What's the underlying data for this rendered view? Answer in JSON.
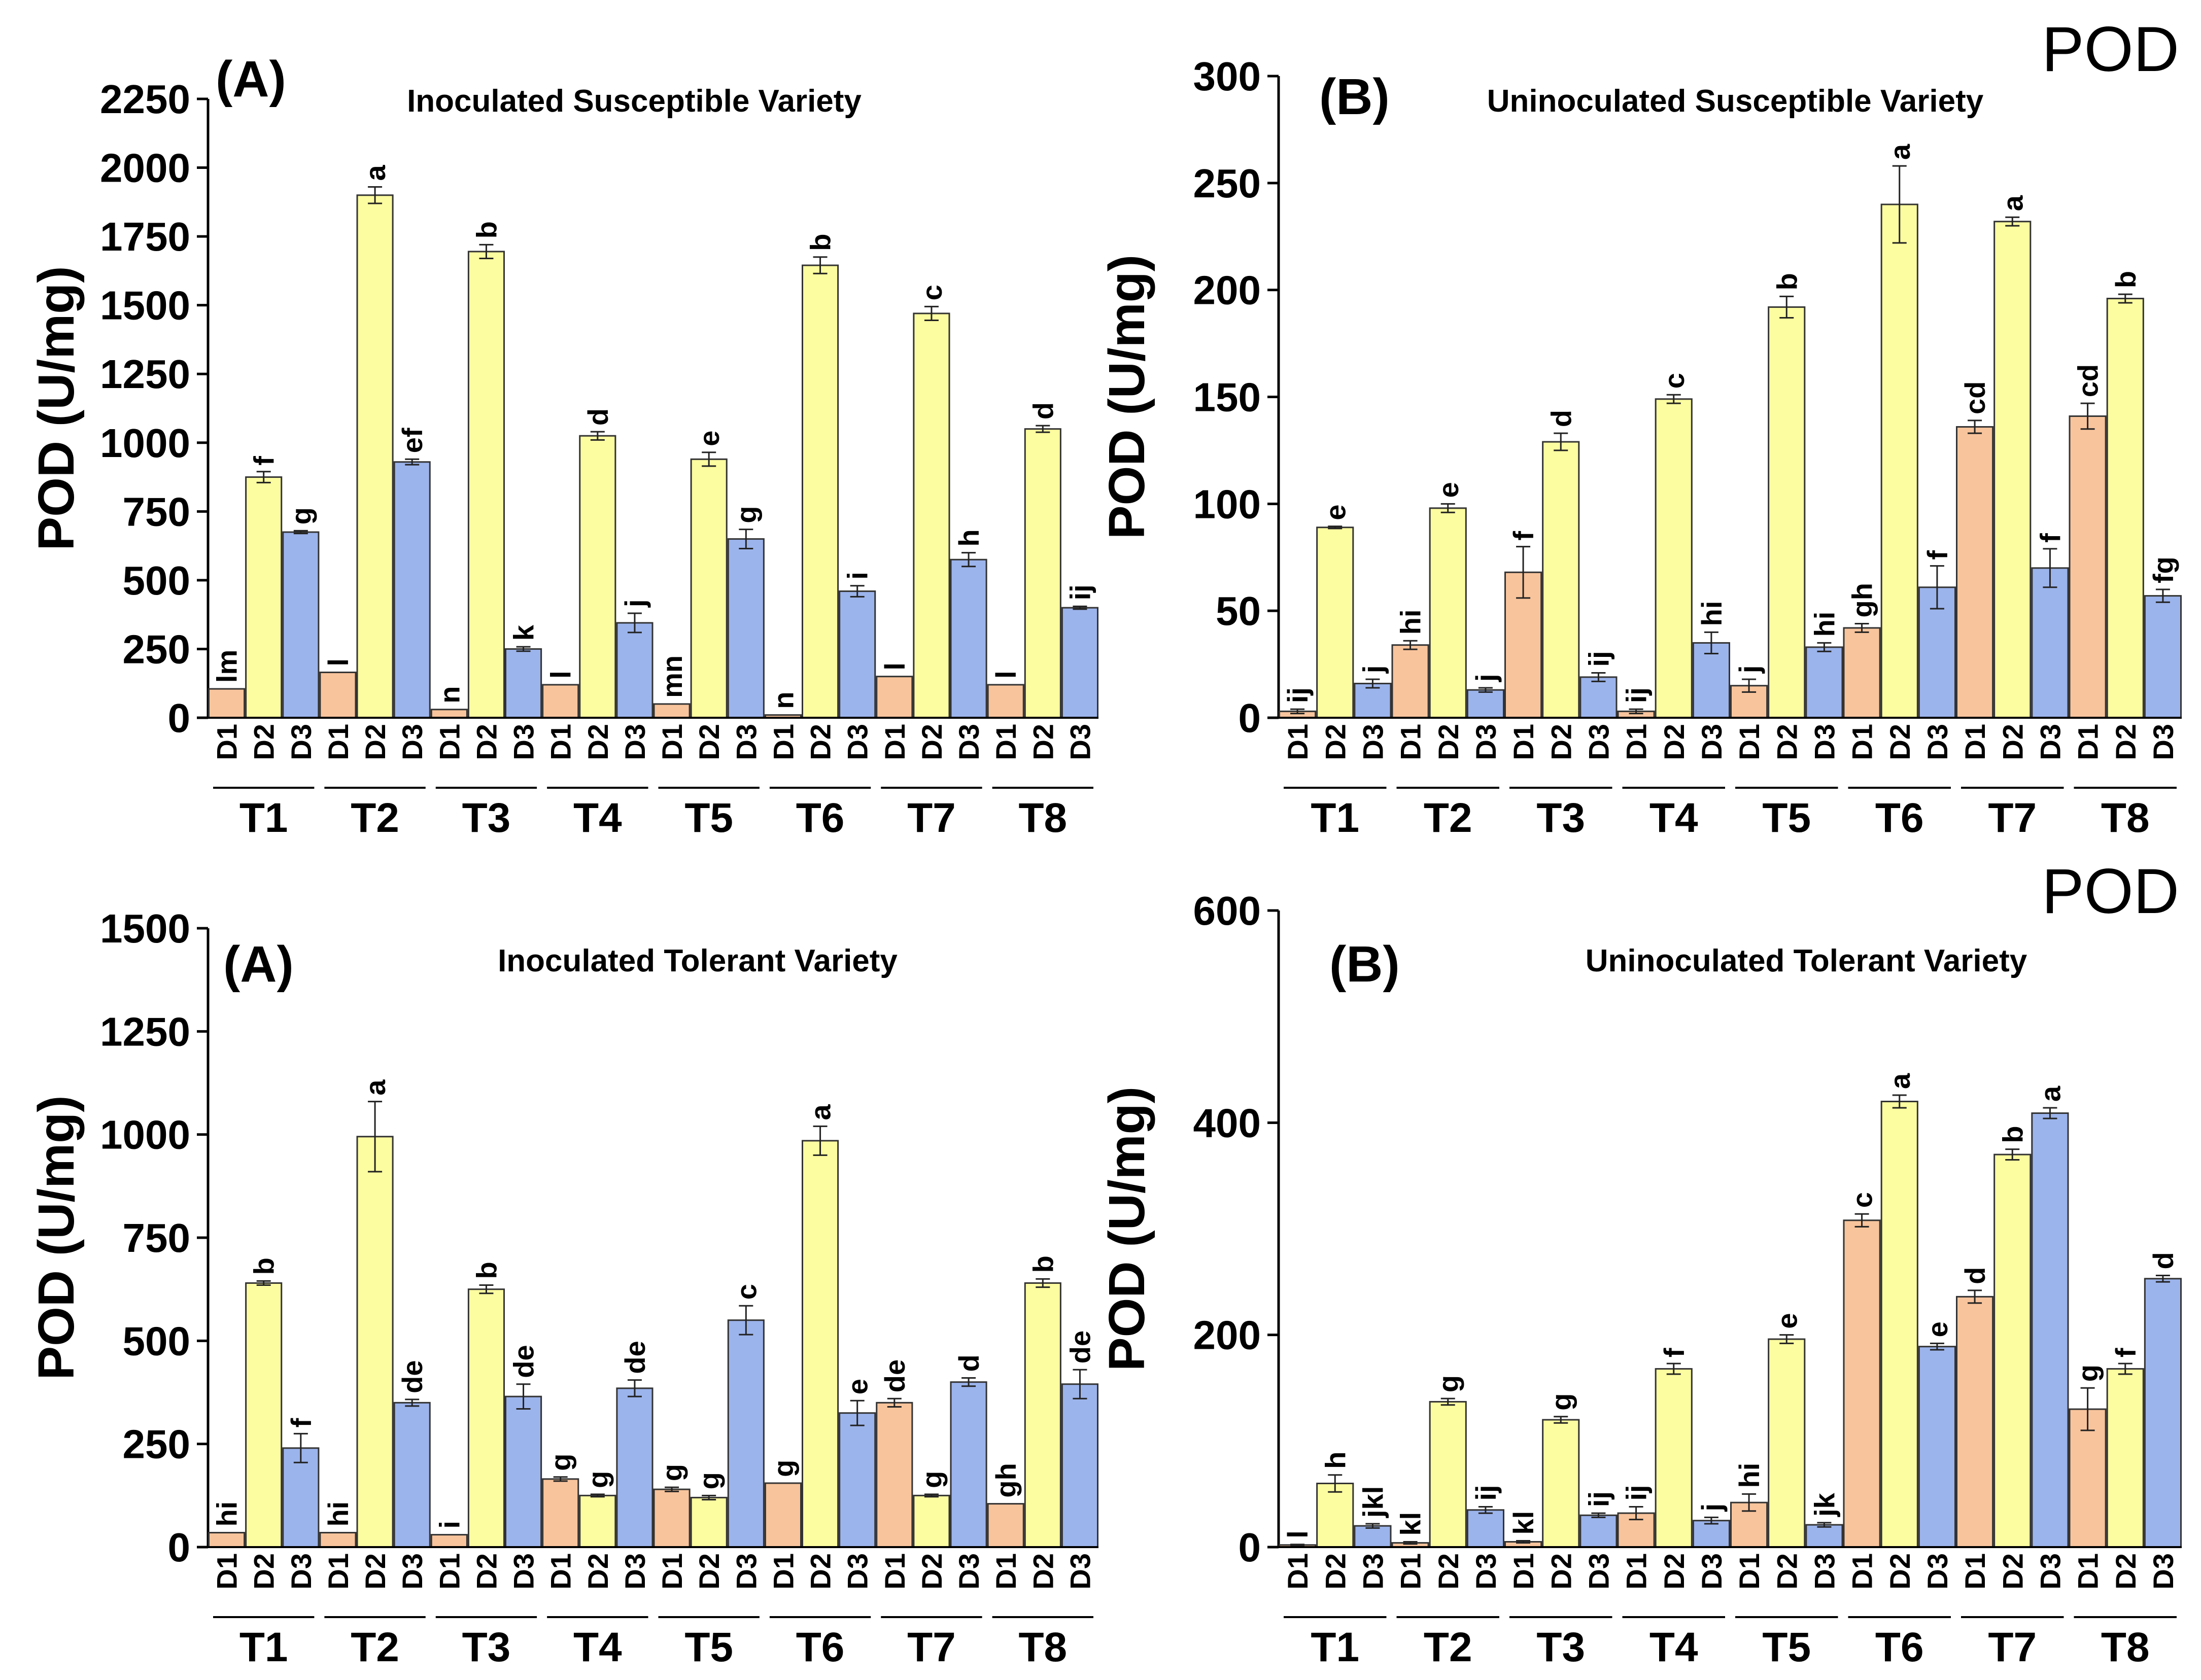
{
  "figure_labels": {
    "pod_top": "POD",
    "pod_bottom": "POD"
  },
  "colors": {
    "D1": "#f8c49c",
    "D2": "#fcfca0",
    "D3": "#9cb4ec",
    "outline": "#333333"
  },
  "chart_data": [
    {
      "type": "bar",
      "panel": "(A)",
      "title": "Inoculated Susceptible Variety",
      "ylabel": "POD (U/mg)",
      "ylim": [
        0,
        2250
      ],
      "yticks": [
        0,
        250,
        500,
        750,
        1000,
        1250,
        1500,
        1750,
        2000,
        2250
      ],
      "categories": [
        "T1",
        "T2",
        "T3",
        "T4",
        "T5",
        "T6",
        "T7",
        "T8"
      ],
      "sublabels": [
        "D1",
        "D2",
        "D3"
      ],
      "series": [
        {
          "name": "D1",
          "values": [
            105,
            165,
            30,
            120,
            50,
            10,
            150,
            120
          ],
          "errors": [
            0,
            0,
            0,
            0,
            0,
            0,
            0,
            0
          ],
          "letters": [
            "lm",
            "l",
            "n",
            "l",
            "mn",
            "n",
            "l",
            "l"
          ]
        },
        {
          "name": "D2",
          "values": [
            875,
            1900,
            1695,
            1025,
            940,
            1645,
            1470,
            1050
          ],
          "errors": [
            20,
            30,
            25,
            15,
            25,
            30,
            25,
            12
          ],
          "letters": [
            "f",
            "a",
            "b",
            "d",
            "e",
            "b",
            "c",
            "d"
          ]
        },
        {
          "name": "D3",
          "values": [
            675,
            930,
            250,
            345,
            650,
            460,
            575,
            400
          ],
          "errors": [
            5,
            10,
            8,
            35,
            35,
            20,
            25,
            5
          ],
          "letters": [
            "g",
            "ef",
            "k",
            "j",
            "g",
            "i",
            "h",
            "ij"
          ]
        }
      ]
    },
    {
      "type": "bar",
      "panel": "(B)",
      "title": "Uninoculated Susceptible Variety",
      "ylabel": "POD (U/mg)",
      "ylim": [
        0,
        300
      ],
      "yticks": [
        0,
        50,
        100,
        150,
        200,
        250,
        300
      ],
      "categories": [
        "T1",
        "T2",
        "T3",
        "T4",
        "T5",
        "T6",
        "T7",
        "T8"
      ],
      "sublabels": [
        "D1",
        "D2",
        "D3"
      ],
      "series": [
        {
          "name": "D1",
          "values": [
            3,
            34,
            68,
            3,
            15,
            42,
            136,
            141
          ],
          "errors": [
            1,
            2,
            12,
            1,
            3,
            2,
            3,
            6
          ],
          "letters": [
            "ij",
            "hi",
            "f",
            "ij",
            "j",
            "gh",
            "cd",
            "cd"
          ]
        },
        {
          "name": "D2",
          "values": [
            89,
            98,
            129,
            149,
            192,
            240,
            232,
            196
          ],
          "errors": [
            0.5,
            2,
            4,
            2,
            5,
            18,
            2,
            2
          ],
          "letters": [
            "e",
            "e",
            "d",
            "c",
            "b",
            "a",
            "a",
            "b"
          ]
        },
        {
          "name": "D3",
          "values": [
            16,
            13,
            19,
            35,
            33,
            61,
            70,
            57
          ],
          "errors": [
            2,
            1,
            2,
            5,
            2,
            10,
            9,
            3
          ],
          "letters": [
            "j",
            "j",
            "ij",
            "hi",
            "hi",
            "f",
            "f",
            "fg"
          ]
        }
      ]
    },
    {
      "type": "bar",
      "panel": "(A)",
      "title": "Inoculated Tolerant Variety",
      "ylabel": "POD (U/mg)",
      "ylim": [
        0,
        1500
      ],
      "yticks": [
        0,
        250,
        500,
        750,
        1000,
        1250,
        1500
      ],
      "categories": [
        "T1",
        "T2",
        "T3",
        "T4",
        "T5",
        "T6",
        "T7",
        "T8"
      ],
      "sublabels": [
        "D1",
        "D2",
        "D3"
      ],
      "series": [
        {
          "name": "D1",
          "values": [
            35,
            35,
            30,
            165,
            140,
            155,
            350,
            105
          ],
          "errors": [
            0,
            0,
            0,
            5,
            5,
            0,
            10,
            0
          ],
          "letters": [
            "hi",
            "hi",
            "i",
            "g",
            "g",
            "g",
            "de",
            "gh"
          ]
        },
        {
          "name": "D2",
          "values": [
            640,
            995,
            625,
            125,
            120,
            985,
            125,
            640
          ],
          "errors": [
            5,
            85,
            10,
            3,
            5,
            35,
            3,
            10
          ],
          "letters": [
            "b",
            "a",
            "b",
            "g",
            "g",
            "a",
            "g",
            "b"
          ]
        },
        {
          "name": "D3",
          "values": [
            240,
            350,
            365,
            385,
            550,
            325,
            400,
            395
          ],
          "errors": [
            35,
            8,
            30,
            20,
            35,
            30,
            10,
            35
          ],
          "letters": [
            "f",
            "de",
            "de",
            "de",
            "c",
            "e",
            "d",
            "de"
          ]
        }
      ]
    },
    {
      "type": "bar",
      "panel": "(B)",
      "title": "Uninoculated  Tolerant Variety",
      "ylabel": "POD (U/mg)",
      "ylim": [
        0,
        600
      ],
      "yticks": [
        0,
        200,
        400,
        600
      ],
      "categories": [
        "T1",
        "T2",
        "T3",
        "T4",
        "T5",
        "T6",
        "T7",
        "T8"
      ],
      "sublabels": [
        "D1",
        "D2",
        "D3"
      ],
      "series": [
        {
          "name": "D1",
          "values": [
            2,
            4,
            5,
            32,
            42,
            308,
            236,
            130
          ],
          "errors": [
            0.5,
            1,
            1,
            6,
            8,
            6,
            6,
            20
          ],
          "letters": [
            "l",
            "kl",
            "kl",
            "ij",
            "hi",
            "c",
            "d",
            "g"
          ]
        },
        {
          "name": "D2",
          "values": [
            60,
            137,
            120,
            168,
            196,
            420,
            370,
            168
          ],
          "errors": [
            8,
            3,
            3,
            5,
            4,
            6,
            5,
            5
          ],
          "letters": [
            "h",
            "g",
            "g",
            "f",
            "e",
            "a",
            "b",
            "f"
          ]
        },
        {
          "name": "D3",
          "values": [
            20,
            35,
            30,
            25,
            21,
            189,
            409,
            253
          ],
          "errors": [
            2,
            3,
            2,
            3,
            2,
            3,
            5,
            3
          ],
          "letters": [
            "jkl",
            "ij",
            "ij",
            "j",
            "jk",
            "e",
            "a",
            "d"
          ]
        }
      ]
    }
  ]
}
